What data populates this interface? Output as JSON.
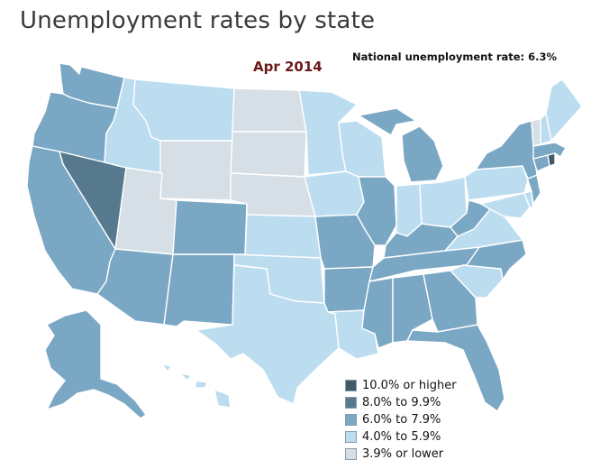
{
  "title": "Unemployment rates by state",
  "period": "Apr 2014",
  "national_rate": "National unemployment rate: 6.3%",
  "colors": {
    "c10": "#3e5a6b",
    "c8": "#56798d",
    "c6": "#7aa7c4",
    "c4": "#bcdcf0",
    "c3": "#d6dfe5"
  },
  "legend": [
    {
      "label": "10.0% or higher",
      "key": "c10"
    },
    {
      "label": "8.0% to 9.9%",
      "key": "c8"
    },
    {
      "label": "6.0% to 7.9%",
      "key": "c6"
    },
    {
      "label": "4.0% to 5.9%",
      "key": "c4"
    },
    {
      "label": "3.9% or lower",
      "key": "c3"
    }
  ],
  "states": {
    "WA": "c6",
    "OR": "c6",
    "CA": "c6",
    "NV": "c8",
    "ID": "c4",
    "MT": "c4",
    "WY": "c3",
    "UT": "c3",
    "AZ": "c6",
    "CO": "c6",
    "NM": "c6",
    "ND": "c3",
    "SD": "c3",
    "NE": "c3",
    "KS": "c4",
    "OK": "c4",
    "TX": "c4",
    "MN": "c4",
    "IA": "c4",
    "MO": "c6",
    "AR": "c6",
    "LA": "c4",
    "WI": "c4",
    "IL": "c6",
    "MI": "c6",
    "IN": "c4",
    "OH": "c4",
    "KY": "c6",
    "TN": "c6",
    "MS": "c6",
    "AL": "c6",
    "GA": "c6",
    "FL": "c6",
    "SC": "c4",
    "NC": "c6",
    "VA": "c4",
    "WV": "c6",
    "PA": "c4",
    "NY": "c6",
    "NJ": "c6",
    "DE": "c4",
    "MD": "c4",
    "CT": "c6",
    "RI": "c10",
    "MA": "c6",
    "VT": "c3",
    "NH": "c4",
    "ME": "c4",
    "AK": "c6",
    "HI": "c4"
  }
}
